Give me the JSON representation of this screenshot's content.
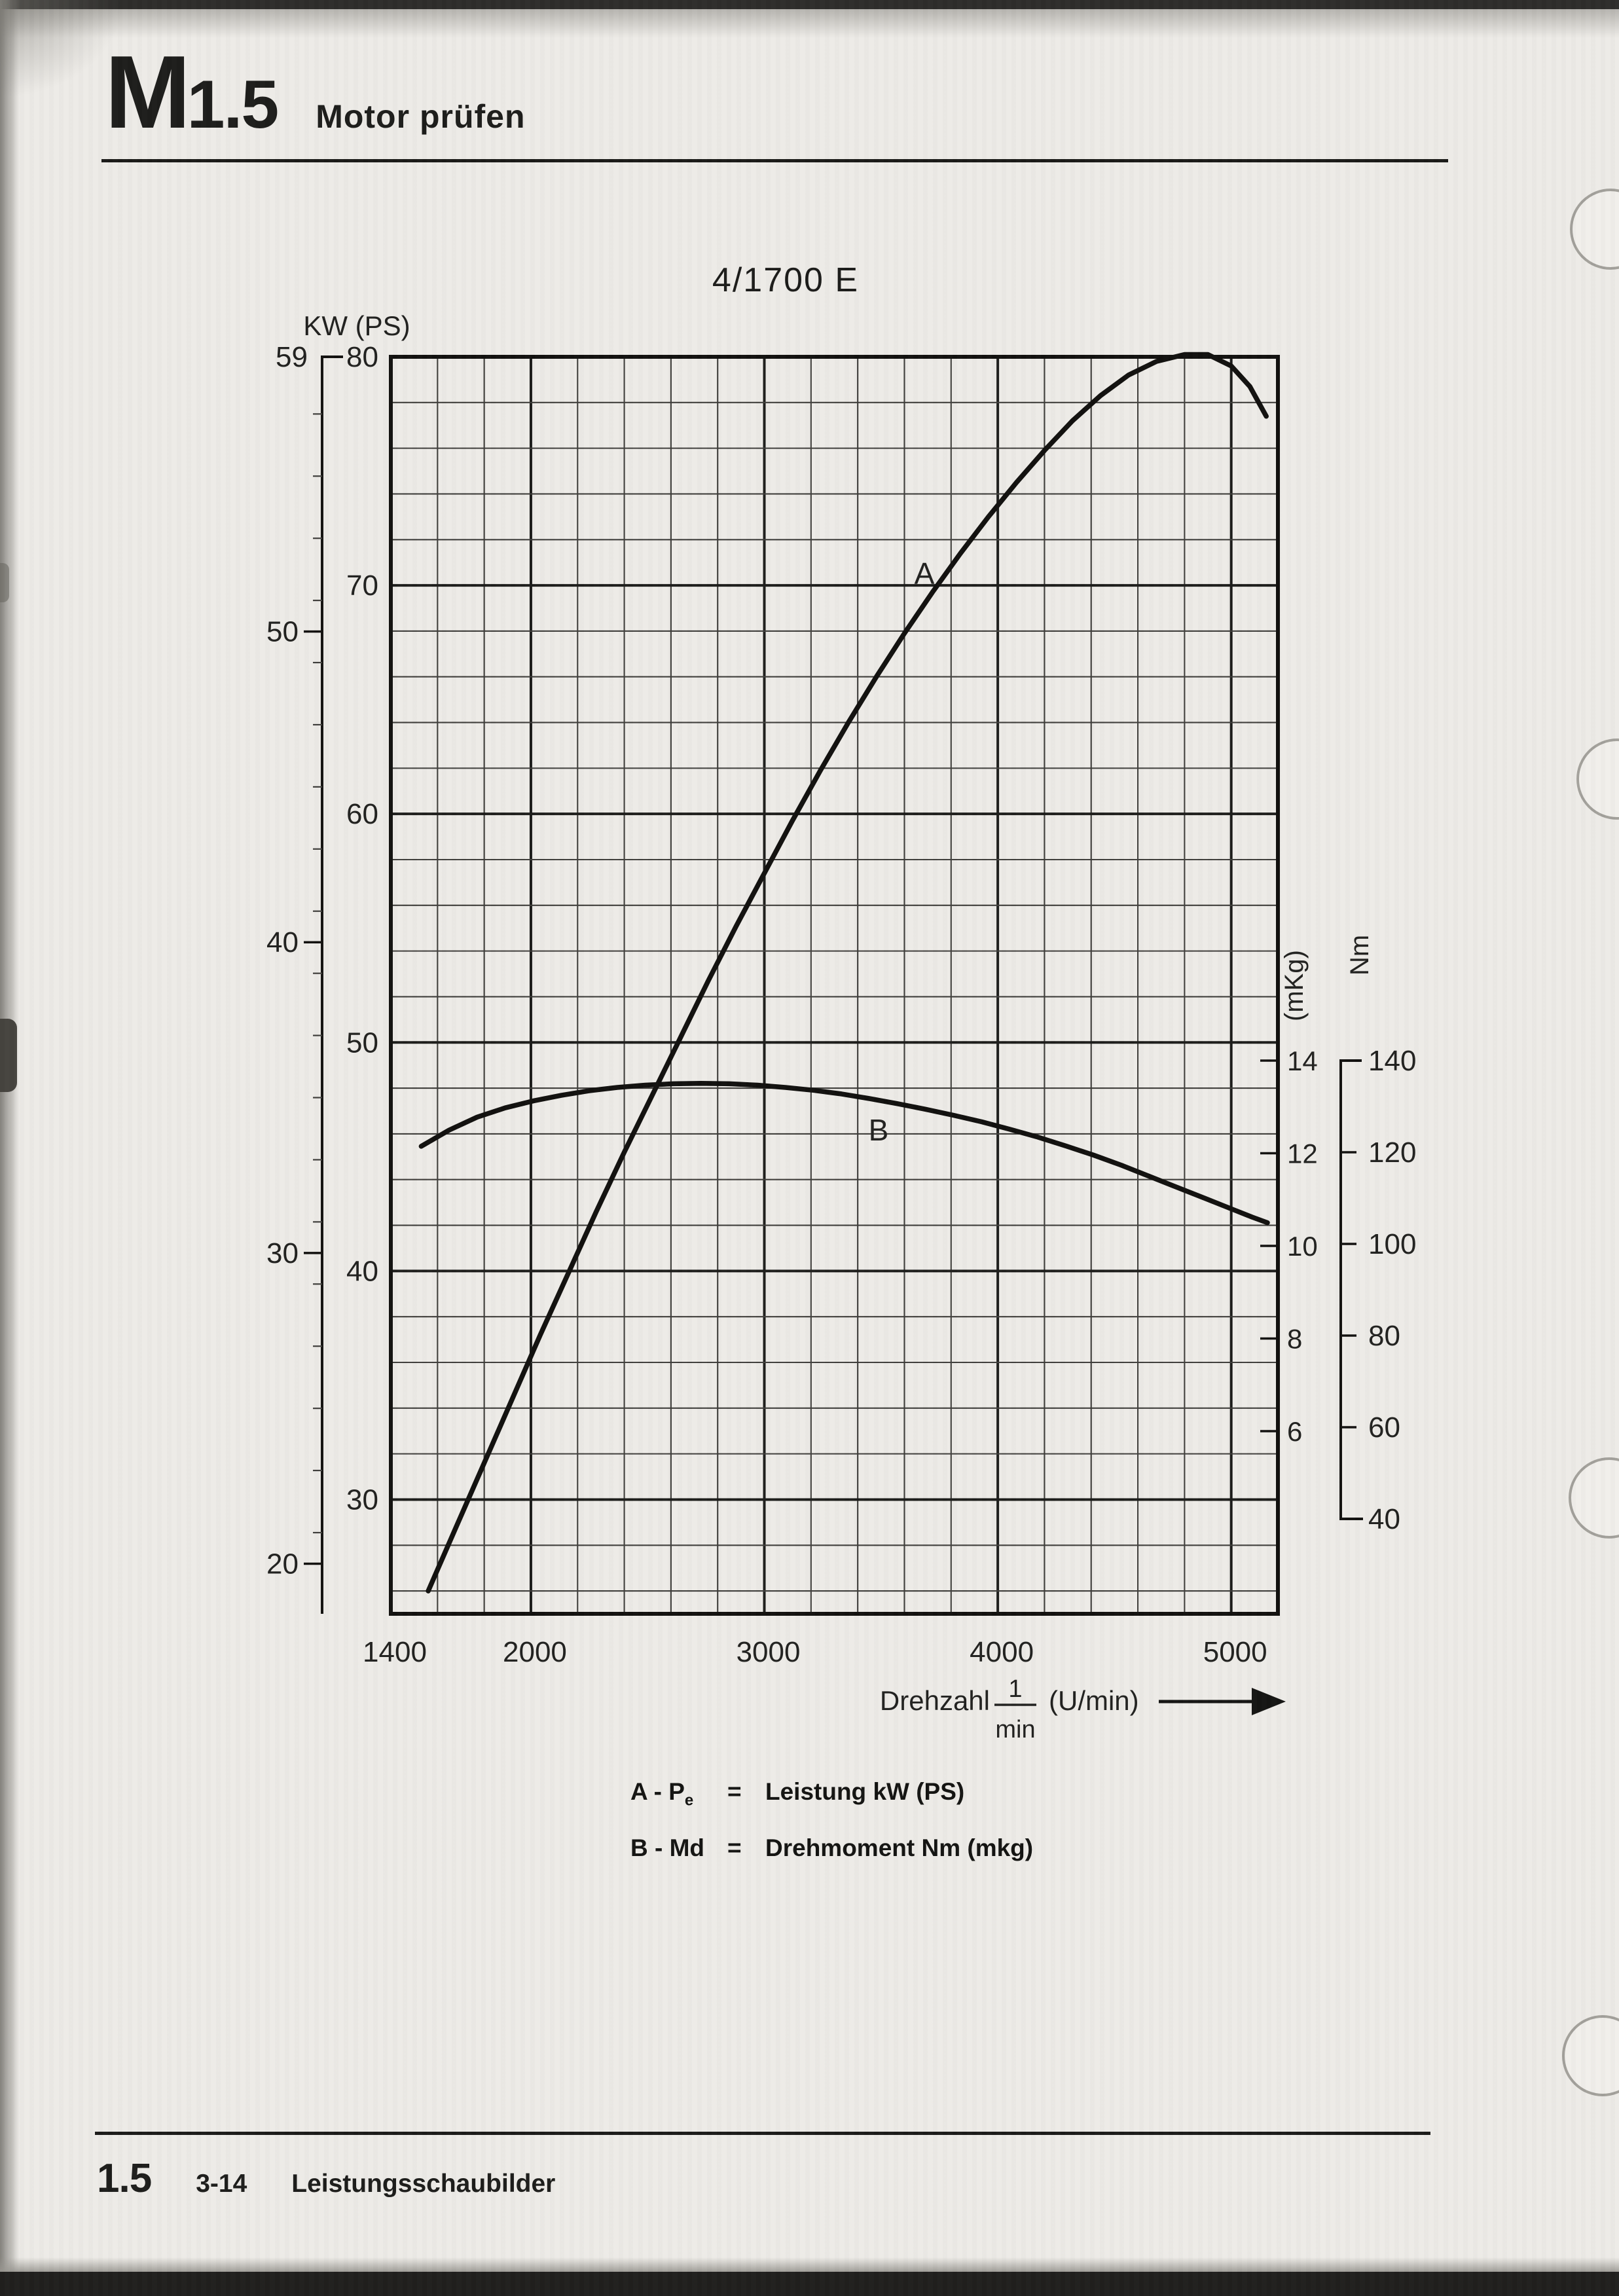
{
  "header": {
    "m": "M",
    "num": "1.5",
    "subtitle": "Motor prüfen"
  },
  "title": "4/1700 E",
  "chart_data": {
    "type": "line",
    "title": "4/1700 E",
    "x_axis": {
      "word": "Drehzahl",
      "frac_top": "1",
      "frac_bottom": "min",
      "unit": "(U/min)",
      "ticks": [
        1400,
        2000,
        3000,
        4000,
        5000
      ],
      "range": [
        1400,
        5200
      ],
      "minor_step": 200
    },
    "y_left": {
      "label": "KW (PS)",
      "kw_ticks": [
        59,
        50,
        40,
        30,
        20
      ],
      "ps_ticks": [
        80,
        70,
        60,
        50,
        40,
        30
      ],
      "ps_range": [
        25,
        80
      ],
      "minor_step_ps": 2,
      "grid": "on"
    },
    "y_right": {
      "mkg_label": "(mKg)",
      "nm_label": "Nm",
      "mkg_ticks": [
        14,
        12,
        10,
        8,
        6
      ],
      "nm_ticks": [
        140,
        120,
        100,
        80,
        60,
        40
      ]
    },
    "series": [
      {
        "letter": "A",
        "name": "A - Pe = Leistung kW (PS)",
        "unit": "PS",
        "peak": {
          "rpm": 4850,
          "value": 80
        },
        "points": [
          [
            1560,
            26
          ],
          [
            1680,
            28.8
          ],
          [
            1800,
            31.6
          ],
          [
            1920,
            34.4
          ],
          [
            2040,
            37.2
          ],
          [
            2160,
            39.9
          ],
          [
            2280,
            42.6
          ],
          [
            2400,
            45.2
          ],
          [
            2520,
            47.7
          ],
          [
            2640,
            50.2
          ],
          [
            2760,
            52.7
          ],
          [
            2880,
            55.1
          ],
          [
            3000,
            57.4
          ],
          [
            3120,
            59.7
          ],
          [
            3240,
            61.9
          ],
          [
            3360,
            64
          ],
          [
            3480,
            66
          ],
          [
            3600,
            67.9
          ],
          [
            3720,
            69.7
          ],
          [
            3840,
            71.4
          ],
          [
            3960,
            73
          ],
          [
            4080,
            74.5
          ],
          [
            4200,
            75.9
          ],
          [
            4320,
            77.2
          ],
          [
            4440,
            78.3
          ],
          [
            4560,
            79.2
          ],
          [
            4680,
            79.8
          ],
          [
            4800,
            80.1
          ],
          [
            4900,
            80.1
          ],
          [
            5000,
            79.6
          ],
          [
            5080,
            78.7
          ],
          [
            5150,
            77.4
          ]
        ]
      },
      {
        "letter": "B",
        "name": "B - Md = Drehmoment Nm (mkg)",
        "unit": "mkg",
        "peak": {
          "rpm": 2700,
          "value": 13.5
        },
        "points": [
          [
            1530,
            12.15
          ],
          [
            1650,
            12.5
          ],
          [
            1770,
            12.78
          ],
          [
            1890,
            12.98
          ],
          [
            2010,
            13.13
          ],
          [
            2130,
            13.25
          ],
          [
            2250,
            13.35
          ],
          [
            2370,
            13.42
          ],
          [
            2490,
            13.47
          ],
          [
            2610,
            13.5
          ],
          [
            2730,
            13.51
          ],
          [
            2850,
            13.5
          ],
          [
            2970,
            13.47
          ],
          [
            3090,
            13.42
          ],
          [
            3210,
            13.36
          ],
          [
            3330,
            13.28
          ],
          [
            3450,
            13.18
          ],
          [
            3570,
            13.07
          ],
          [
            3690,
            12.95
          ],
          [
            3810,
            12.82
          ],
          [
            3930,
            12.68
          ],
          [
            4050,
            12.52
          ],
          [
            4170,
            12.35
          ],
          [
            4290,
            12.16
          ],
          [
            4410,
            11.96
          ],
          [
            4530,
            11.74
          ],
          [
            4650,
            11.5
          ],
          [
            4770,
            11.26
          ],
          [
            4890,
            11.02
          ],
          [
            5010,
            10.78
          ],
          [
            5090,
            10.62
          ],
          [
            5155,
            10.5
          ]
        ]
      }
    ],
    "ink_color": "#12110f",
    "grid_minor_color": "#403f3c",
    "grid_major_color": "#1d1d1b"
  },
  "legend": {
    "line1": {
      "key": "A - P",
      "key_sub": "e",
      "eq": "=",
      "text": "Leistung kW (PS)"
    },
    "line2": {
      "key": "B - Md",
      "key_sub": "",
      "eq": "=",
      "text": "Drehmoment Nm (mkg)"
    }
  },
  "footer": {
    "section": "1.5",
    "page": "3-14",
    "title": "Leistungsschaubilder"
  }
}
